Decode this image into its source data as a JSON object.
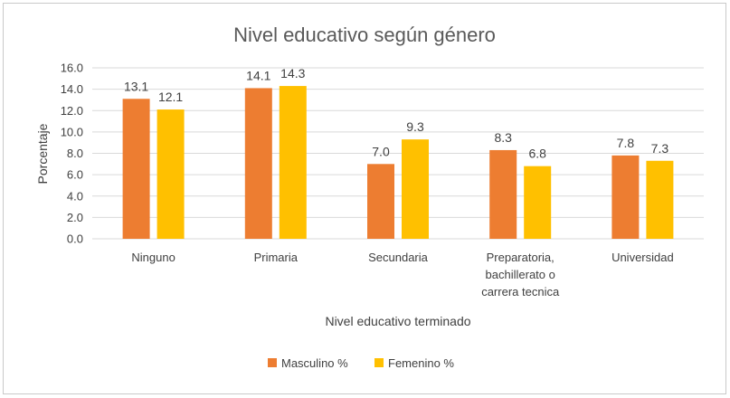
{
  "chart_data": {
    "type": "bar",
    "title": "Nivel educativo según género",
    "xlabel": "Nivel educativo terminado",
    "ylabel": "Porcentaje",
    "categories": [
      [
        "Ninguno"
      ],
      [
        "Primaria"
      ],
      [
        "Secundaria"
      ],
      [
        "Preparatoria,",
        "bachillerato o",
        "carrera tecnica"
      ],
      [
        "Universidad"
      ]
    ],
    "series": [
      {
        "name": "Masculino %",
        "color": "#ED7D31",
        "values": [
          13.1,
          14.1,
          7.0,
          8.3,
          7.8
        ]
      },
      {
        "name": "Femenino %",
        "color": "#FFC000",
        "values": [
          12.1,
          14.3,
          9.3,
          6.8,
          7.3
        ]
      }
    ],
    "ylim": [
      0,
      16
    ],
    "yticks": [
      "0.0",
      "2.0",
      "4.0",
      "6.0",
      "8.0",
      "10.0",
      "12.0",
      "14.0",
      "16.0"
    ],
    "grid": true,
    "legend_position": "bottom"
  }
}
